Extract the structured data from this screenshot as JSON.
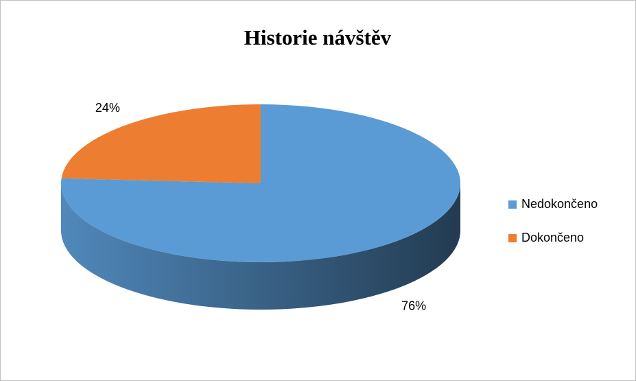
{
  "chart_data": {
    "type": "pie3d",
    "title": "Historie návštěv",
    "categories": [
      "Nedokončeno",
      "Dokončeno"
    ],
    "values": [
      76,
      24
    ],
    "value_labels": [
      "76%",
      "24%"
    ],
    "colors": [
      "#5b9bd5",
      "#ed7d31"
    ],
    "legend": "right"
  }
}
